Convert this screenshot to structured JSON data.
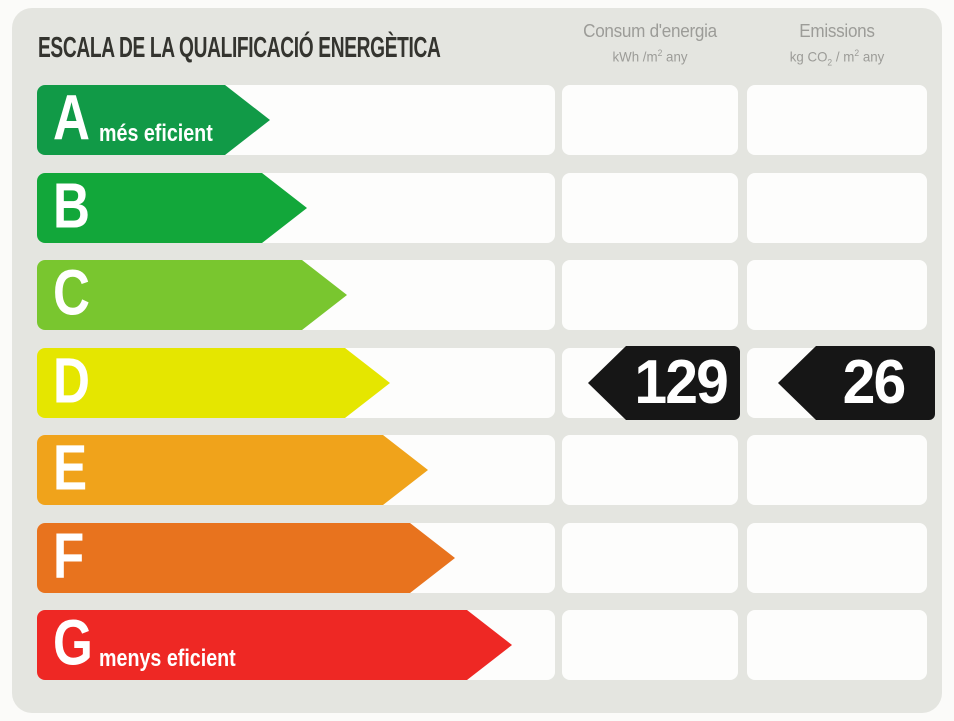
{
  "title": "ESCALA DE LA QUALIFICACIÓ ENERGÈTICA",
  "columns": [
    {
      "label": "Consum d'energia",
      "unit_parts": [
        "kWh /m",
        "2",
        " any"
      ]
    },
    {
      "label": "Emissions",
      "unit_parts": [
        "kg CO",
        "2",
        " / m",
        "2",
        " any"
      ]
    }
  ],
  "ratings": [
    {
      "letter": "A",
      "label": "més eficient",
      "color": "#119a47",
      "arrow_width": 233
    },
    {
      "letter": "B",
      "label": "",
      "color": "#12a73a",
      "arrow_width": 270
    },
    {
      "letter": "C",
      "label": "",
      "color": "#79c62f",
      "arrow_width": 310
    },
    {
      "letter": "D",
      "label": "",
      "color": "#e5e600",
      "arrow_width": 353
    },
    {
      "letter": "E",
      "label": "",
      "color": "#f0a31b",
      "arrow_width": 391
    },
    {
      "letter": "F",
      "label": "",
      "color": "#e8731e",
      "arrow_width": 418
    },
    {
      "letter": "G",
      "label": "menys eficient",
      "color": "#ee2824",
      "arrow_width": 475
    }
  ],
  "result": {
    "rating": "D",
    "consumption": "129",
    "emissions": "26"
  },
  "style_colors": {
    "panel_background": "#e4e5e0",
    "cell_background": "#fdfdfc",
    "indicator_black": "#161616",
    "header_text": "#9c9c98",
    "title_text": "#34342f"
  },
  "chart_data": {
    "type": "bar",
    "title": "ESCALA DE LA QUALIFICACIÓ ENERGÈTICA",
    "categories": [
      "A",
      "B",
      "C",
      "D",
      "E",
      "F",
      "G"
    ],
    "category_annotations": {
      "A": "més eficient",
      "G": "menys eficient"
    },
    "bar_colors": [
      "#119a47",
      "#12a73a",
      "#79c62f",
      "#e5e600",
      "#f0a31b",
      "#e8731e",
      "#ee2824"
    ],
    "bar_relative_lengths": [
      233,
      270,
      310,
      353,
      391,
      418,
      475
    ],
    "selected_rating": "D",
    "series": [
      {
        "name": "Consum d'energia (kWh/m² any)",
        "values": [
          null,
          null,
          null,
          129,
          null,
          null,
          null
        ]
      },
      {
        "name": "Emissions (kg CO₂/m² any)",
        "values": [
          null,
          null,
          null,
          26,
          null,
          null,
          null
        ]
      }
    ],
    "legend_position": "none",
    "grid": false
  }
}
